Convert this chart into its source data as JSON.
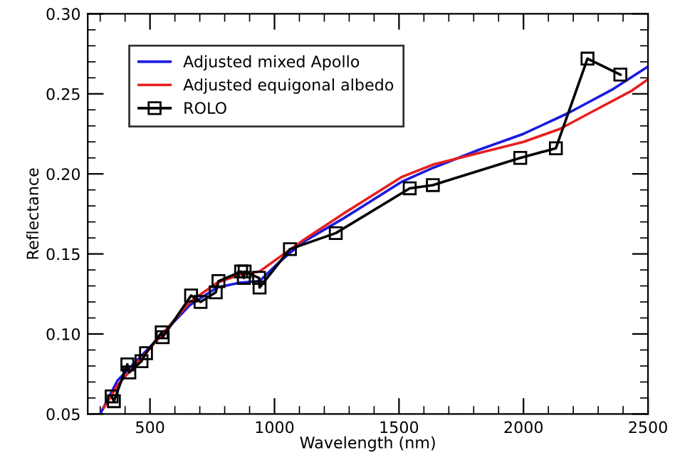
{
  "chart_data": {
    "type": "line",
    "xlabel": "Wavelength (nm)",
    "ylabel": "Reflectance",
    "xlim": [
      250,
      2500
    ],
    "ylim": [
      0.05,
      0.3
    ],
    "xticks": [
      500,
      1000,
      1500,
      2000,
      2500
    ],
    "yticks": [
      {
        "value": 0.05,
        "label": "0.05"
      },
      {
        "value": 0.1,
        "label": "0.10"
      },
      {
        "value": 0.15,
        "label": "0.15"
      },
      {
        "value": 0.2,
        "label": "0.20"
      },
      {
        "value": 0.25,
        "label": "0.25"
      },
      {
        "value": 0.3,
        "label": "0.30"
      }
    ],
    "grid": false,
    "legend": "top left",
    "line_style": "solid",
    "series": [
      {
        "name": "Adjusted mixed Apollo",
        "color": "#1a1adf",
        "marker": "none",
        "x": [
          300,
          370,
          550,
          660,
          770,
          860,
          940,
          1020,
          1110,
          1275,
          1510,
          1640,
          1820,
          2000,
          2180,
          2360,
          2500
        ],
        "values": [
          0.05,
          0.071,
          0.1,
          0.118,
          0.129,
          0.132,
          0.133,
          0.145,
          0.157,
          0.172,
          0.195,
          0.204,
          0.215,
          0.225,
          0.238,
          0.253,
          0.267
        ]
      },
      {
        "name": "Adjusted equigonal albedo",
        "color": "#e52020",
        "marker": "none",
        "x": [
          315,
          370,
          550,
          660,
          770,
          860,
          940,
          1020,
          1110,
          1275,
          1510,
          1640,
          1820,
          2000,
          2145,
          2290,
          2435,
          2500
        ],
        "values": [
          0.054,
          0.068,
          0.1,
          0.12,
          0.132,
          0.137,
          0.139,
          0.148,
          0.158,
          0.175,
          0.198,
          0.206,
          0.213,
          0.22,
          0.228,
          0.24,
          0.252,
          0.259
        ]
      },
      {
        "name": "ROLO",
        "color": "#000000",
        "marker": "square",
        "x": [
          346,
          355,
          409,
          417,
          466,
          484,
          547,
          551,
          665,
          703,
          764,
          775,
          866,
          877,
          880,
          938,
          940,
          1062,
          1246,
          1543,
          1636,
          1987,
          2130,
          2257,
          2389
        ],
        "values": [
          0.061,
          0.058,
          0.081,
          0.076,
          0.083,
          0.088,
          0.101,
          0.098,
          0.124,
          0.12,
          0.126,
          0.133,
          0.139,
          0.135,
          0.139,
          0.135,
          0.129,
          0.153,
          0.163,
          0.191,
          0.193,
          0.21,
          0.216,
          0.272,
          0.262
        ]
      }
    ]
  }
}
